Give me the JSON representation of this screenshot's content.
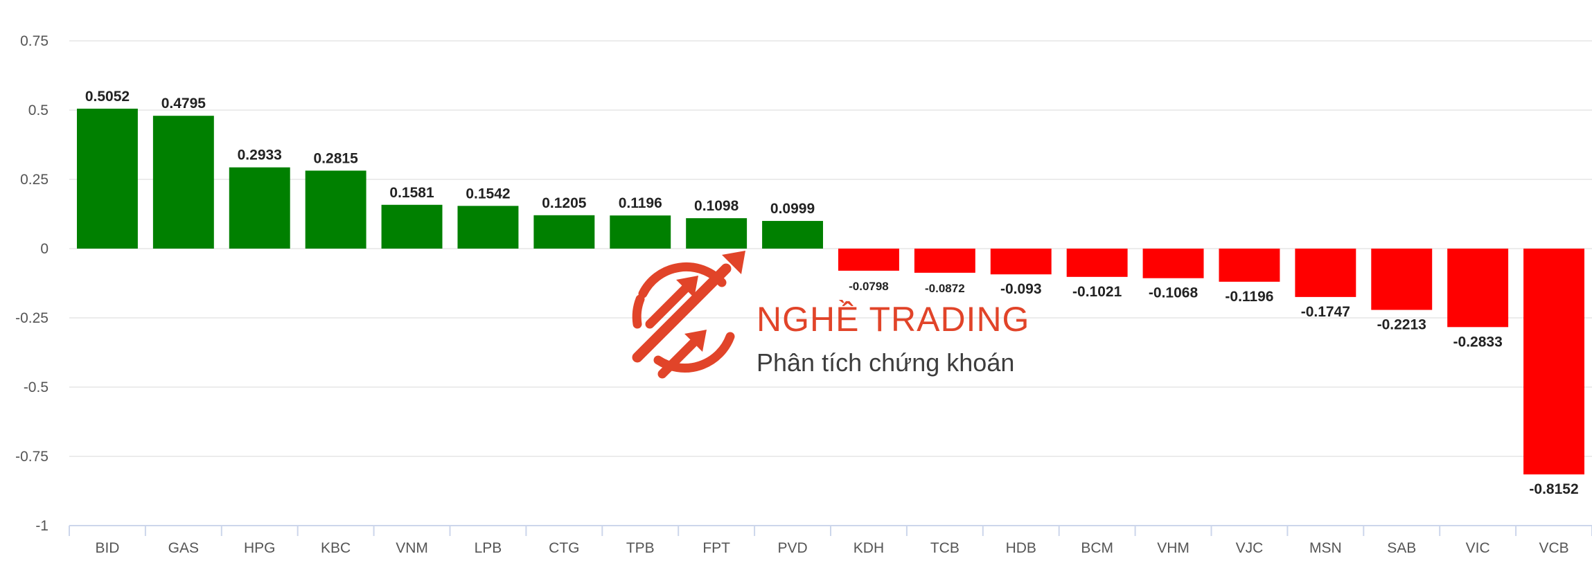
{
  "chart_data": {
    "type": "bar",
    "categories": [
      "BID",
      "GAS",
      "HPG",
      "KBC",
      "VNM",
      "LPB",
      "CTG",
      "TPB",
      "FPT",
      "PVD",
      "KDH",
      "TCB",
      "HDB",
      "BCM",
      "VHM",
      "VJC",
      "MSN",
      "SAB",
      "VIC",
      "VCB"
    ],
    "values": [
      0.5052,
      0.4795,
      0.2933,
      0.2815,
      0.1581,
      0.1542,
      0.1205,
      0.1196,
      0.1098,
      0.0999,
      -0.0798,
      -0.0872,
      -0.093,
      -0.1021,
      -0.1068,
      -0.1196,
      -0.1747,
      -0.2213,
      -0.2833,
      -0.8152
    ],
    "value_labels": [
      "0.5052",
      "0.4795",
      "0.2933",
      "0.2815",
      "0.1581",
      "0.1542",
      "0.1205",
      "0.1196",
      "0.1098",
      "0.0999",
      "-0.0798",
      "-0.0872",
      "-0.093",
      "-0.1021",
      "-0.1068",
      "-0.1196",
      "-0.1747",
      "-0.2213",
      "-0.2833",
      "-0.8152"
    ],
    "yticks": [
      0.75,
      0.5,
      0.25,
      0,
      -0.25,
      -0.5,
      -0.75,
      -1
    ],
    "ytick_labels": [
      "0.75",
      "0.5",
      "0.25",
      "0",
      "-0.25",
      "-0.5",
      "-0.75",
      "-1"
    ],
    "ylim": [
      -1,
      0.75
    ],
    "grid": true,
    "positive_color": "#008000",
    "negative_color": "#ff0000",
    "title": "",
    "xlabel": "",
    "ylabel": ""
  },
  "watermark": {
    "title": "NGHỀ TRADING",
    "subtitle": "Phân tích chứng khoán",
    "logo_icon": "circular-arrows-logo-icon",
    "color": "#e03a1e"
  }
}
